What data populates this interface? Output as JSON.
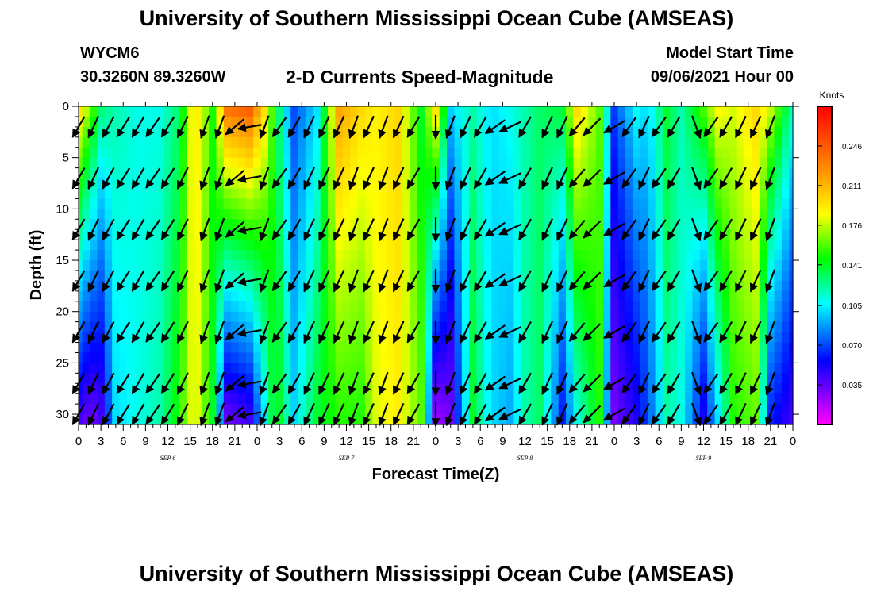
{
  "header": {
    "title": "University of Southern Mississippi Ocean Cube (AMSEAS)",
    "station": "WYCM6",
    "coords": "30.3260N  89.3260W",
    "subtitle": "2-D Currents Speed-Magnitude",
    "start_label": "Model Start Time",
    "start_value": "09/06/2021 Hour 00"
  },
  "footer": {
    "title": "University of Southern Mississippi Ocean Cube (AMSEAS)"
  },
  "chart_data": {
    "type": "heatmap",
    "title": "2-D Currents Speed-Magnitude",
    "xlabel": "Forecast Time(Z)",
    "ylabel": "Depth (ft)",
    "xlim": [
      0,
      96
    ],
    "ylim": [
      31,
      0
    ],
    "x_tick_labels": [
      "0",
      "3",
      "6",
      "9",
      "12",
      "15",
      "18",
      "21",
      "0",
      "3",
      "6",
      "9",
      "12",
      "15",
      "18",
      "21",
      "0",
      "3",
      "6",
      "9",
      "12",
      "15",
      "18",
      "21",
      "0",
      "3",
      "6",
      "9",
      "12",
      "15",
      "18",
      "21",
      "0"
    ],
    "y_ticks": [
      0,
      5,
      10,
      15,
      20,
      25,
      30
    ],
    "day_labels": [
      {
        "text": "SEP 6",
        "hour": 12
      },
      {
        "text": "SEP 7",
        "hour": 36
      },
      {
        "text": "SEP 8",
        "hour": 60
      },
      {
        "text": "SEP 9",
        "hour": 84
      }
    ],
    "colorbar": {
      "label": "Knots",
      "ticks": [
        0.035,
        0.07,
        0.105,
        0.141,
        0.176,
        0.211,
        0.246
      ],
      "tick_labels": [
        "0.035",
        "0.070",
        "0.105",
        "0.141",
        "0.176",
        "0.211",
        "0.246"
      ],
      "range": [
        0.0,
        0.281
      ],
      "colors": [
        "#ff00ff",
        "#0000ff",
        "#00ffff",
        "#00ff00",
        "#ffff00",
        "#ff8000",
        "#ff0000"
      ]
    },
    "hours": [
      0,
      1,
      2,
      3,
      4,
      5,
      6,
      7,
      8,
      9,
      10,
      11,
      12,
      13,
      14,
      15,
      16,
      17,
      18,
      19,
      20,
      21,
      22,
      23,
      24,
      25,
      26,
      27,
      28,
      29,
      30,
      31,
      32,
      33,
      34,
      35,
      36,
      37,
      38,
      39,
      40,
      41,
      42,
      43,
      44,
      45,
      46,
      47,
      48,
      49,
      50,
      51,
      52,
      53,
      54,
      55,
      56,
      57,
      58,
      59,
      60,
      61,
      62,
      63,
      64,
      65,
      66,
      67,
      68,
      69,
      70,
      71,
      72,
      73,
      74,
      75,
      76,
      77,
      78,
      79,
      80,
      81,
      82,
      83,
      84,
      85,
      86,
      87,
      88,
      89,
      90,
      91,
      92,
      93,
      94,
      95,
      96
    ],
    "speed_profile": {
      "hour_nodes": [
        0,
        1.5,
        3,
        5,
        8,
        11,
        13.5,
        15.5,
        18,
        20,
        23,
        25,
        26.5,
        29,
        32,
        35,
        38,
        40,
        43,
        46,
        48,
        50,
        53,
        55.5,
        58,
        60,
        62,
        65,
        67,
        70,
        72,
        75,
        76.5,
        79,
        81,
        84,
        86,
        88,
        91,
        93,
        96
      ],
      "surface_knots": [
        0.2,
        0.17,
        0.13,
        0.12,
        0.11,
        0.11,
        0.13,
        0.2,
        0.15,
        0.24,
        0.25,
        0.2,
        0.14,
        0.07,
        0.1,
        0.22,
        0.2,
        0.19,
        0.2,
        0.14,
        0.2,
        0.1,
        0.12,
        0.1,
        0.11,
        0.12,
        0.13,
        0.14,
        0.2,
        0.16,
        0.07,
        0.11,
        0.1,
        0.14,
        0.12,
        0.16,
        0.19,
        0.18,
        0.2,
        0.18,
        0.12
      ],
      "bottom_knots": [
        0.04,
        0.03,
        0.04,
        0.1,
        0.11,
        0.12,
        0.15,
        0.19,
        0.14,
        0.03,
        0.04,
        0.1,
        0.15,
        0.1,
        0.14,
        0.15,
        0.15,
        0.18,
        0.19,
        0.16,
        0.02,
        0.03,
        0.14,
        0.1,
        0.09,
        0.12,
        0.13,
        0.06,
        0.11,
        0.15,
        0.03,
        0.05,
        0.07,
        0.12,
        0.11,
        0.05,
        0.1,
        0.15,
        0.16,
        0.06,
        0.04
      ]
    },
    "vector_columns": [
      {
        "hour": 0,
        "deg": 210
      },
      {
        "hour": 2,
        "deg": 205
      },
      {
        "hour": 4,
        "deg": 208
      },
      {
        "hour": 6,
        "deg": 212
      },
      {
        "hour": 8,
        "deg": 210
      },
      {
        "hour": 10,
        "deg": 215
      },
      {
        "hour": 12,
        "deg": 212
      },
      {
        "hour": 14,
        "deg": 206
      },
      {
        "hour": 17,
        "deg": 200
      },
      {
        "hour": 19,
        "deg": 200
      },
      {
        "hour": 21,
        "deg": 230
      },
      {
        "hour": 23,
        "deg": 260
      },
      {
        "hour": 25,
        "deg": 200
      },
      {
        "hour": 27,
        "deg": 215
      },
      {
        "hour": 29,
        "deg": 210
      },
      {
        "hour": 31,
        "deg": 205
      },
      {
        "hour": 33,
        "deg": 205
      },
      {
        "hour": 35,
        "deg": 205
      },
      {
        "hour": 37,
        "deg": 200
      },
      {
        "hour": 39,
        "deg": 205
      },
      {
        "hour": 41,
        "deg": 200
      },
      {
        "hour": 43,
        "deg": 205
      },
      {
        "hour": 45,
        "deg": 210
      },
      {
        "hour": 48,
        "deg": 180
      },
      {
        "hour": 50,
        "deg": 200
      },
      {
        "hour": 52,
        "deg": 205
      },
      {
        "hour": 54,
        "deg": 210
      },
      {
        "hour": 56,
        "deg": 235
      },
      {
        "hour": 58,
        "deg": 245
      },
      {
        "hour": 60,
        "deg": 210
      },
      {
        "hour": 63,
        "deg": 205
      },
      {
        "hour": 65,
        "deg": 205
      },
      {
        "hour": 67,
        "deg": 220
      },
      {
        "hour": 69,
        "deg": 225
      },
      {
        "hour": 72,
        "deg": 240
      },
      {
        "hour": 74,
        "deg": 215
      },
      {
        "hour": 76,
        "deg": 205
      },
      {
        "hour": 78,
        "deg": 215
      },
      {
        "hour": 80,
        "deg": 210
      },
      {
        "hour": 83,
        "deg": 160
      },
      {
        "hour": 85,
        "deg": 215
      },
      {
        "hour": 87,
        "deg": 210
      },
      {
        "hour": 89,
        "deg": 205
      },
      {
        "hour": 91,
        "deg": 205
      },
      {
        "hour": 93,
        "deg": 200
      }
    ],
    "vector_depths_ft": [
      2,
      7,
      12,
      17,
      22,
      27,
      30
    ],
    "grid": false,
    "legend": "colorbar-right"
  }
}
